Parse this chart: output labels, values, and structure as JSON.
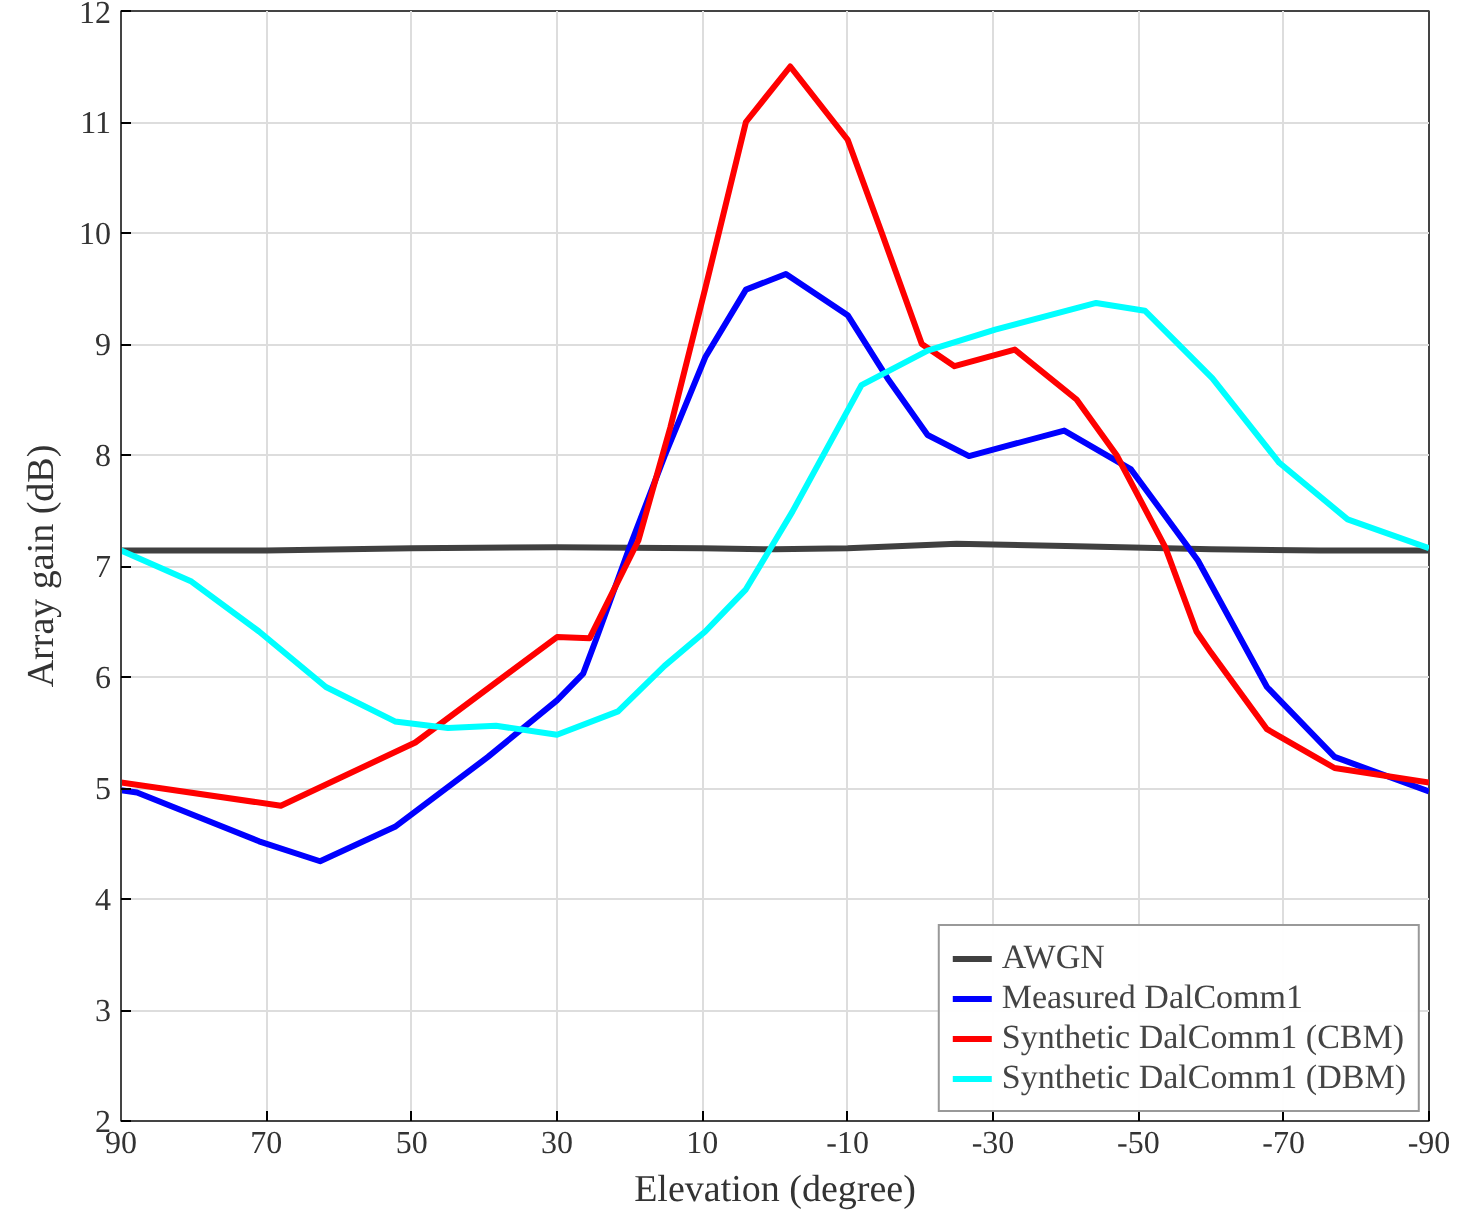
{
  "chart_data": {
    "type": "line",
    "xlabel": "Elevation (degree)",
    "ylabel": "Array gain (dB)",
    "xlim": [
      90,
      -90
    ],
    "xticks": [
      90,
      70,
      50,
      30,
      10,
      -10,
      -30,
      -50,
      -70,
      -90
    ],
    "ylim": [
      2,
      12
    ],
    "yticks": [
      2,
      3,
      4,
      5,
      6,
      7,
      8,
      9,
      10,
      11,
      12
    ],
    "grid": true,
    "legend": "bottom right",
    "line_style": "solid",
    "marker": "none",
    "series": [
      {
        "name": "AWGN",
        "color": "#404040",
        "x": [
          90,
          70,
          50,
          30,
          10,
          0,
          -10,
          -25,
          -40,
          -60,
          -75,
          -90
        ],
        "values": [
          7.14,
          7.14,
          7.16,
          7.17,
          7.16,
          7.15,
          7.16,
          7.2,
          7.18,
          7.15,
          7.14,
          7.14
        ]
      },
      {
        "name": "Measured DalComm1",
        "color": "#0000ff",
        "x": [
          90,
          87.8,
          71,
          62.6,
          52.3,
          39.5,
          30,
          26.4,
          24.5,
          20,
          15.2,
          9.6,
          4,
          -1.5,
          -10,
          -15.5,
          -21,
          -26.7,
          -39.8,
          -49,
          -58.2,
          -67.7,
          -77,
          -90
        ],
        "values": [
          4.98,
          4.96,
          4.52,
          4.34,
          4.65,
          5.28,
          5.79,
          6.03,
          6.36,
          7.17,
          7.99,
          8.88,
          9.49,
          9.63,
          9.26,
          8.69,
          8.18,
          7.99,
          8.22,
          7.87,
          7.05,
          5.91,
          5.28,
          4.97
        ]
      },
      {
        "name": "Synthetic DalComm1 (CBM)",
        "color": "#ff0000",
        "x": [
          90,
          68,
          49.5,
          30,
          25.5,
          18.8,
          14.4,
          9.6,
          4,
          -2.1,
          -10,
          -14.7,
          -20.2,
          -24.7,
          -33,
          -41.5,
          -47,
          -53.7,
          -58,
          -60,
          -67.7,
          -77,
          -90
        ],
        "values": [
          5.05,
          4.84,
          5.41,
          6.36,
          6.35,
          7.23,
          8.25,
          9.5,
          11.0,
          11.5,
          10.84,
          10.0,
          9.0,
          8.8,
          8.95,
          8.5,
          8.0,
          7.17,
          6.41,
          6.22,
          5.53,
          5.18,
          5.05
        ]
      },
      {
        "name": "Synthetic DalComm1 (DBM)",
        "color": "#00ffff",
        "x": [
          90,
          80.3,
          71,
          61.8,
          52.3,
          45,
          38.4,
          30,
          21.6,
          15.2,
          9.6,
          6.8,
          4,
          -2.4,
          -11.9,
          -21,
          -30.3,
          -44.2,
          -50.9,
          -60.2,
          -69.4,
          -78.8,
          -90
        ],
        "values": [
          7.14,
          6.86,
          6.41,
          5.91,
          5.6,
          5.54,
          5.56,
          5.48,
          5.69,
          6.1,
          6.41,
          6.6,
          6.79,
          7.49,
          8.63,
          8.94,
          9.13,
          9.37,
          9.3,
          8.69,
          7.93,
          7.42,
          7.16
        ]
      }
    ]
  }
}
